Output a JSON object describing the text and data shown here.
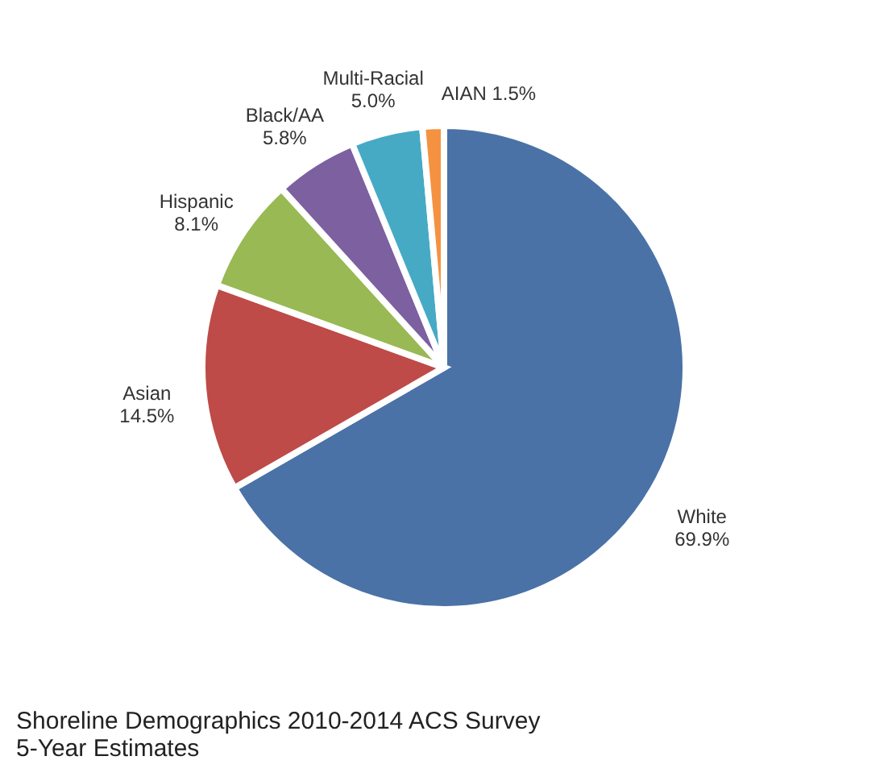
{
  "chart_data": {
    "type": "pie",
    "title": "Shoreline Demographics 2010-2014 ACS Survey\n5-Year Estimates",
    "categories": [
      "White",
      "Asian",
      "Hispanic",
      "Black/AA",
      "Multi-Racial",
      "AIAN"
    ],
    "values": [
      69.9,
      14.5,
      8.1,
      5.8,
      5.0,
      1.5
    ],
    "value_labels": [
      "69.9%",
      "14.5%",
      "8.1%",
      "5.8%",
      "5.0%",
      "1.5%"
    ],
    "colors": [
      "#4a72a6",
      "#be4b48",
      "#98b954",
      "#7d60a0",
      "#46aac5",
      "#f59242"
    ],
    "legend": false
  }
}
